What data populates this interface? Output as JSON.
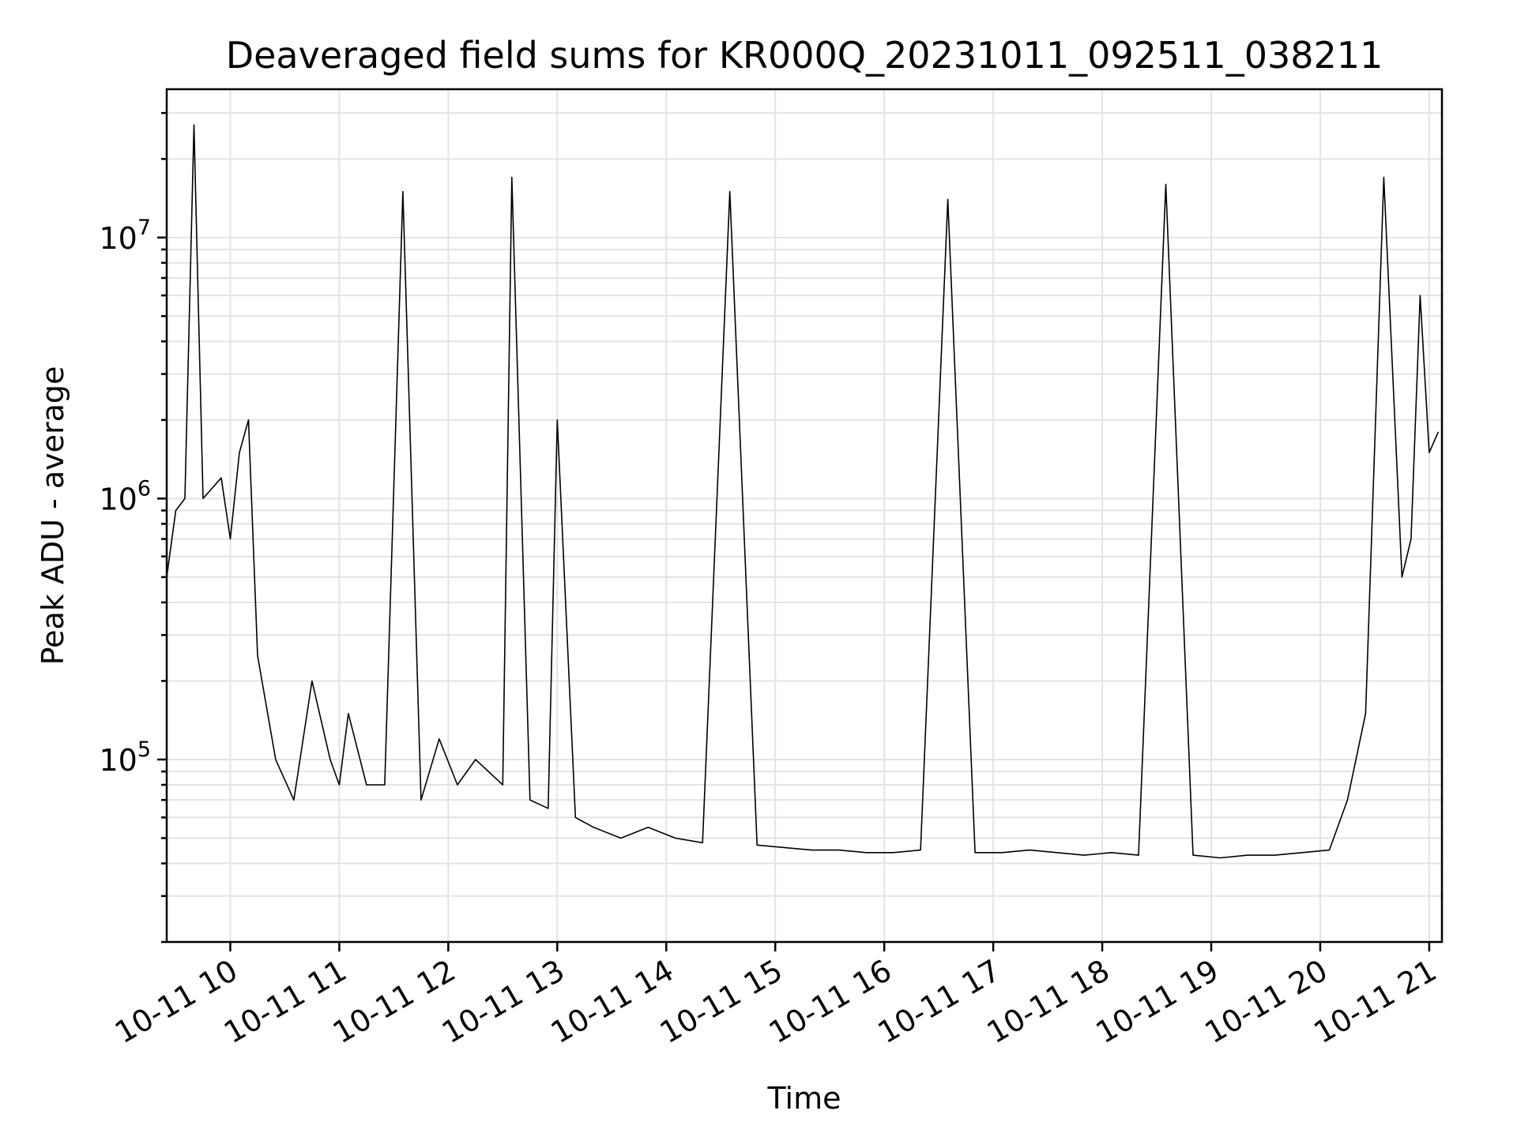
{
  "chart_data": {
    "type": "line",
    "title": "Deaveraged field sums for KR000Q_20231011_092511_038211",
    "xlabel": "Time",
    "ylabel": "Peak ADU - average",
    "y_scale": "log",
    "grid": "major and minor",
    "line_color": "#000000",
    "xlim": [
      "2023-10-11 09:25",
      "2023-10-11 21:07"
    ],
    "ylim": [
      20000,
      37000000
    ],
    "x_ticks": [
      "10-11 10",
      "10-11 11",
      "10-11 12",
      "10-11 13",
      "10-11 14",
      "10-11 15",
      "10-11 16",
      "10-11 17",
      "10-11 18",
      "10-11 19",
      "10-11 20",
      "10-11 21"
    ],
    "y_ticks": [
      {
        "value": 100000,
        "base": "10",
        "exp": "5"
      },
      {
        "value": 1000000,
        "base": "10",
        "exp": "6"
      },
      {
        "value": 10000000,
        "base": "10",
        "exp": "7"
      }
    ],
    "series": [
      {
        "points": [
          [
            "2023-10-11 09:25",
            500000
          ],
          [
            "2023-10-11 09:30",
            900000
          ],
          [
            "2023-10-11 09:35",
            1000000
          ],
          [
            "2023-10-11 09:40",
            27000000
          ],
          [
            "2023-10-11 09:45",
            1000000
          ],
          [
            "2023-10-11 09:55",
            1200000
          ],
          [
            "2023-10-11 10:00",
            700000
          ],
          [
            "2023-10-11 10:05",
            1500000
          ],
          [
            "2023-10-11 10:10",
            2000000
          ],
          [
            "2023-10-11 10:15",
            250000
          ],
          [
            "2023-10-11 10:25",
            100000
          ],
          [
            "2023-10-11 10:35",
            70000
          ],
          [
            "2023-10-11 10:45",
            200000
          ],
          [
            "2023-10-11 10:55",
            100000
          ],
          [
            "2023-10-11 11:00",
            80000
          ],
          [
            "2023-10-11 11:05",
            150000
          ],
          [
            "2023-10-11 11:15",
            80000
          ],
          [
            "2023-10-11 11:25",
            80000
          ],
          [
            "2023-10-11 11:35",
            15000000
          ],
          [
            "2023-10-11 11:45",
            70000
          ],
          [
            "2023-10-11 11:55",
            120000
          ],
          [
            "2023-10-11 12:05",
            80000
          ],
          [
            "2023-10-11 12:15",
            100000
          ],
          [
            "2023-10-11 12:30",
            80000
          ],
          [
            "2023-10-11 12:35",
            17000000
          ],
          [
            "2023-10-11 12:45",
            70000
          ],
          [
            "2023-10-11 12:55",
            65000
          ],
          [
            "2023-10-11 13:00",
            2000000
          ],
          [
            "2023-10-11 13:10",
            60000
          ],
          [
            "2023-10-11 13:20",
            55000
          ],
          [
            "2023-10-11 13:35",
            50000
          ],
          [
            "2023-10-11 13:50",
            55000
          ],
          [
            "2023-10-11 14:05",
            50000
          ],
          [
            "2023-10-11 14:20",
            48000
          ],
          [
            "2023-10-11 14:35",
            15000000
          ],
          [
            "2023-10-11 14:50",
            47000
          ],
          [
            "2023-10-11 15:05",
            46000
          ],
          [
            "2023-10-11 15:20",
            45000
          ],
          [
            "2023-10-11 15:35",
            45000
          ],
          [
            "2023-10-11 15:50",
            44000
          ],
          [
            "2023-10-11 16:05",
            44000
          ],
          [
            "2023-10-11 16:20",
            45000
          ],
          [
            "2023-10-11 16:35",
            14000000
          ],
          [
            "2023-10-11 16:50",
            44000
          ],
          [
            "2023-10-11 17:05",
            44000
          ],
          [
            "2023-10-11 17:20",
            45000
          ],
          [
            "2023-10-11 17:35",
            44000
          ],
          [
            "2023-10-11 17:50",
            43000
          ],
          [
            "2023-10-11 18:05",
            44000
          ],
          [
            "2023-10-11 18:20",
            43000
          ],
          [
            "2023-10-11 18:35",
            16000000
          ],
          [
            "2023-10-11 18:50",
            43000
          ],
          [
            "2023-10-11 19:05",
            42000
          ],
          [
            "2023-10-11 19:20",
            43000
          ],
          [
            "2023-10-11 19:35",
            43000
          ],
          [
            "2023-10-11 19:50",
            44000
          ],
          [
            "2023-10-11 20:05",
            45000
          ],
          [
            "2023-10-11 20:15",
            70000
          ],
          [
            "2023-10-11 20:25",
            150000
          ],
          [
            "2023-10-11 20:35",
            17000000
          ],
          [
            "2023-10-11 20:45",
            500000
          ],
          [
            "2023-10-11 20:50",
            700000
          ],
          [
            "2023-10-11 20:55",
            6000000
          ],
          [
            "2023-10-11 21:00",
            1500000
          ],
          [
            "2023-10-11 21:05",
            1800000
          ]
        ]
      }
    ]
  }
}
